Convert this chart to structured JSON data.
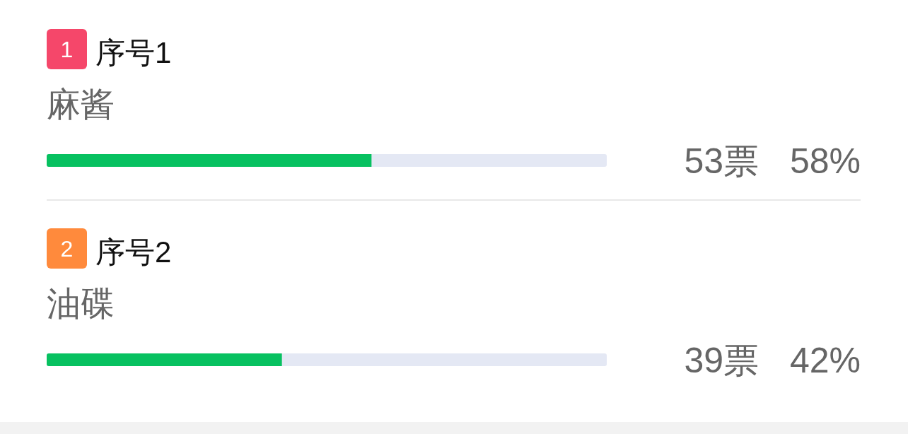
{
  "chart_data": {
    "type": "bar",
    "orientation": "horizontal",
    "categories": [
      "麻酱",
      "油碟"
    ],
    "series": [
      {
        "color": "#07c160",
        "values": [
          58,
          42
        ],
        "value_labels": [
          "58%",
          "42%"
        ]
      }
    ],
    "xlim": [
      0,
      100
    ],
    "tick_labels": "y",
    "annotations": [
      "1",
      "序号1",
      "53票",
      "2",
      "序号2",
      "39票"
    ]
  }
}
